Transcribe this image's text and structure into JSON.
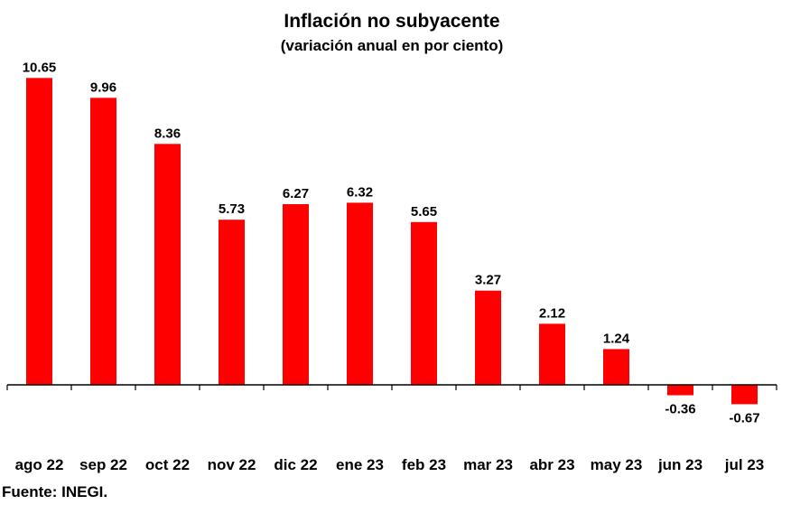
{
  "chart_data": {
    "type": "bar",
    "title": "Inflación no subyacente",
    "subtitle": "(variación anual en por ciento)",
    "categories": [
      "ago 22",
      "sep 22",
      "oct 22",
      "nov 22",
      "dic 22",
      "ene 23",
      "feb 23",
      "mar 23",
      "abr 23",
      "may 23",
      "jun 23",
      "jul 23"
    ],
    "values": [
      10.65,
      9.96,
      8.36,
      5.73,
      6.27,
      6.32,
      5.65,
      3.27,
      2.12,
      1.24,
      -0.36,
      -0.67
    ],
    "value_labels": [
      "10.65",
      "9.96",
      "8.36",
      "5.73",
      "6.27",
      "6.32",
      "5.65",
      "3.27",
      "2.12",
      "1.24",
      "-0.36",
      "-0.67"
    ],
    "bar_color": "#ff0000",
    "axis_color": "#000000",
    "grid": false,
    "legend": false
  },
  "source": "Fuente: INEGI."
}
